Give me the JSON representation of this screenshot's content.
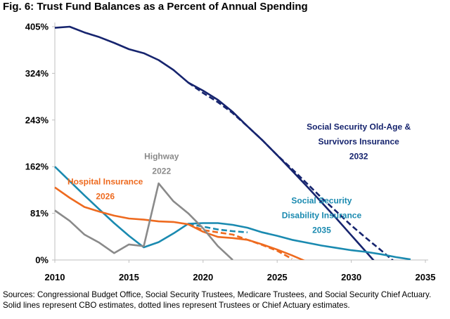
{
  "title": "Fig. 6: Trust Fund Balances as a Percent of Annual Spending",
  "notes": [
    "Sources: Congressional Budget Office, Social Security Trustees, Medicare Trustees, and Social Security Chief Actuary.",
    "Solid lines represent CBO estimates, dotted lines represent Trustees or Chief Actuary estimates."
  ],
  "colors": {
    "oasi": "#16246e",
    "di": "#1a8ab0",
    "hi": "#ee6a1f",
    "highway": "#8a8a8a",
    "axis": "#bfbfbf"
  },
  "chart_data": {
    "type": "line",
    "title": "Fig. 6: Trust Fund Balances as a Percent of Annual Spending",
    "xlim": [
      2010,
      2035
    ],
    "ylim": [
      0,
      405
    ],
    "x_ticks": [
      2010,
      2015,
      2020,
      2025,
      2030,
      2035
    ],
    "x_tick_labels": [
      "2010",
      "2015",
      "2020",
      "2025",
      "2030",
      "2035"
    ],
    "y_ticks": [
      0,
      81,
      162,
      243,
      324,
      405
    ],
    "y_tick_labels": [
      "0%",
      "81%",
      "162%",
      "243%",
      "324%",
      "405%"
    ],
    "grid": false,
    "series": [
      {
        "name": "Social Security Old-Age & Survivors Insurance",
        "color_key": "oasi",
        "style": "solid",
        "x": [
          2010,
          2011,
          2012,
          2013,
          2014,
          2015,
          2016,
          2017,
          2018,
          2019,
          2020,
          2021,
          2022,
          2023,
          2024,
          2025,
          2026,
          2027,
          2028,
          2029,
          2030,
          2031,
          2032,
          2033
        ],
        "y": [
          403,
          405,
          395,
          387,
          377,
          366,
          359,
          347,
          330,
          308,
          294,
          278,
          257,
          232,
          208,
          182,
          155,
          128,
          100,
          72,
          43,
          14,
          -15,
          -44
        ]
      },
      {
        "name": "Social Security Old-Age & Survivors Insurance",
        "color_key": "oasi",
        "style": "dashed",
        "x": [
          2019,
          2020,
          2021,
          2022,
          2023,
          2024,
          2025,
          2026,
          2027,
          2028,
          2029,
          2030,
          2031,
          2032,
          2033,
          2034
        ],
        "y": [
          308,
          290,
          274,
          255,
          232,
          208,
          182,
          158,
          133,
          108,
          84,
          60,
          38,
          17,
          -5,
          -27
        ]
      },
      {
        "name": "Social Security Disability Insurance",
        "color_key": "di",
        "style": "solid",
        "x": [
          2010,
          2011,
          2012,
          2013,
          2014,
          2015,
          2016,
          2017,
          2018,
          2019,
          2020,
          2021,
          2022,
          2023,
          2024,
          2025,
          2026,
          2027,
          2028,
          2029,
          2030,
          2031,
          2032,
          2033,
          2034
        ],
        "y": [
          162,
          137,
          112,
          88,
          64,
          42,
          22,
          31,
          46,
          63,
          64,
          64,
          61,
          56,
          48,
          42,
          35,
          30,
          25,
          21,
          17,
          14,
          10,
          5,
          1
        ]
      },
      {
        "name": "Social Security Disability Insurance",
        "color_key": "di",
        "style": "dashed",
        "x": [
          2019,
          2020,
          2021,
          2022,
          2023
        ],
        "y": [
          63,
          58,
          53,
          50,
          48
        ]
      },
      {
        "name": "Hospital Insurance",
        "color_key": "hi",
        "style": "solid",
        "x": [
          2010,
          2011,
          2012,
          2013,
          2014,
          2015,
          2016,
          2017,
          2018,
          2019,
          2020,
          2021,
          2022,
          2023,
          2024,
          2025,
          2026,
          2027
        ],
        "y": [
          126,
          108,
          92,
          84,
          77,
          72,
          70,
          67,
          66,
          62,
          49,
          40,
          38,
          35,
          27,
          18,
          8,
          -3
        ]
      },
      {
        "name": "Hospital Insurance",
        "color_key": "hi",
        "style": "dashed",
        "x": [
          2019,
          2020,
          2021,
          2022,
          2023,
          2024,
          2025,
          2026
        ],
        "y": [
          62,
          52,
          48,
          44,
          35,
          26,
          16,
          2
        ]
      },
      {
        "name": "Highway",
        "color_key": "highway",
        "style": "solid",
        "x": [
          2010,
          2011,
          2012,
          2013,
          2014,
          2015,
          2016,
          2017,
          2018,
          2019,
          2020,
          2021,
          2022
        ],
        "y": [
          86,
          68,
          44,
          30,
          12,
          27,
          24,
          133,
          102,
          81,
          55,
          24,
          0
        ]
      }
    ],
    "annotations": [
      {
        "lines": [
          "Social Security Old-Age &",
          "Survivors Insurance",
          "2032"
        ],
        "color_key": "oasi",
        "anchor": [
          2030.5,
          226
        ]
      },
      {
        "lines": [
          "Highway",
          "2022"
        ],
        "color_key": "highway",
        "anchor": [
          2017.2,
          175
        ]
      },
      {
        "lines": [
          "Hospital Insurance",
          "2026"
        ],
        "color_key": "hi",
        "anchor": [
          2013.4,
          131
        ]
      },
      {
        "lines": [
          "Social Security",
          "Disability Insurance",
          "2035"
        ],
        "color_key": "di",
        "anchor": [
          2028.0,
          98
        ]
      }
    ]
  }
}
